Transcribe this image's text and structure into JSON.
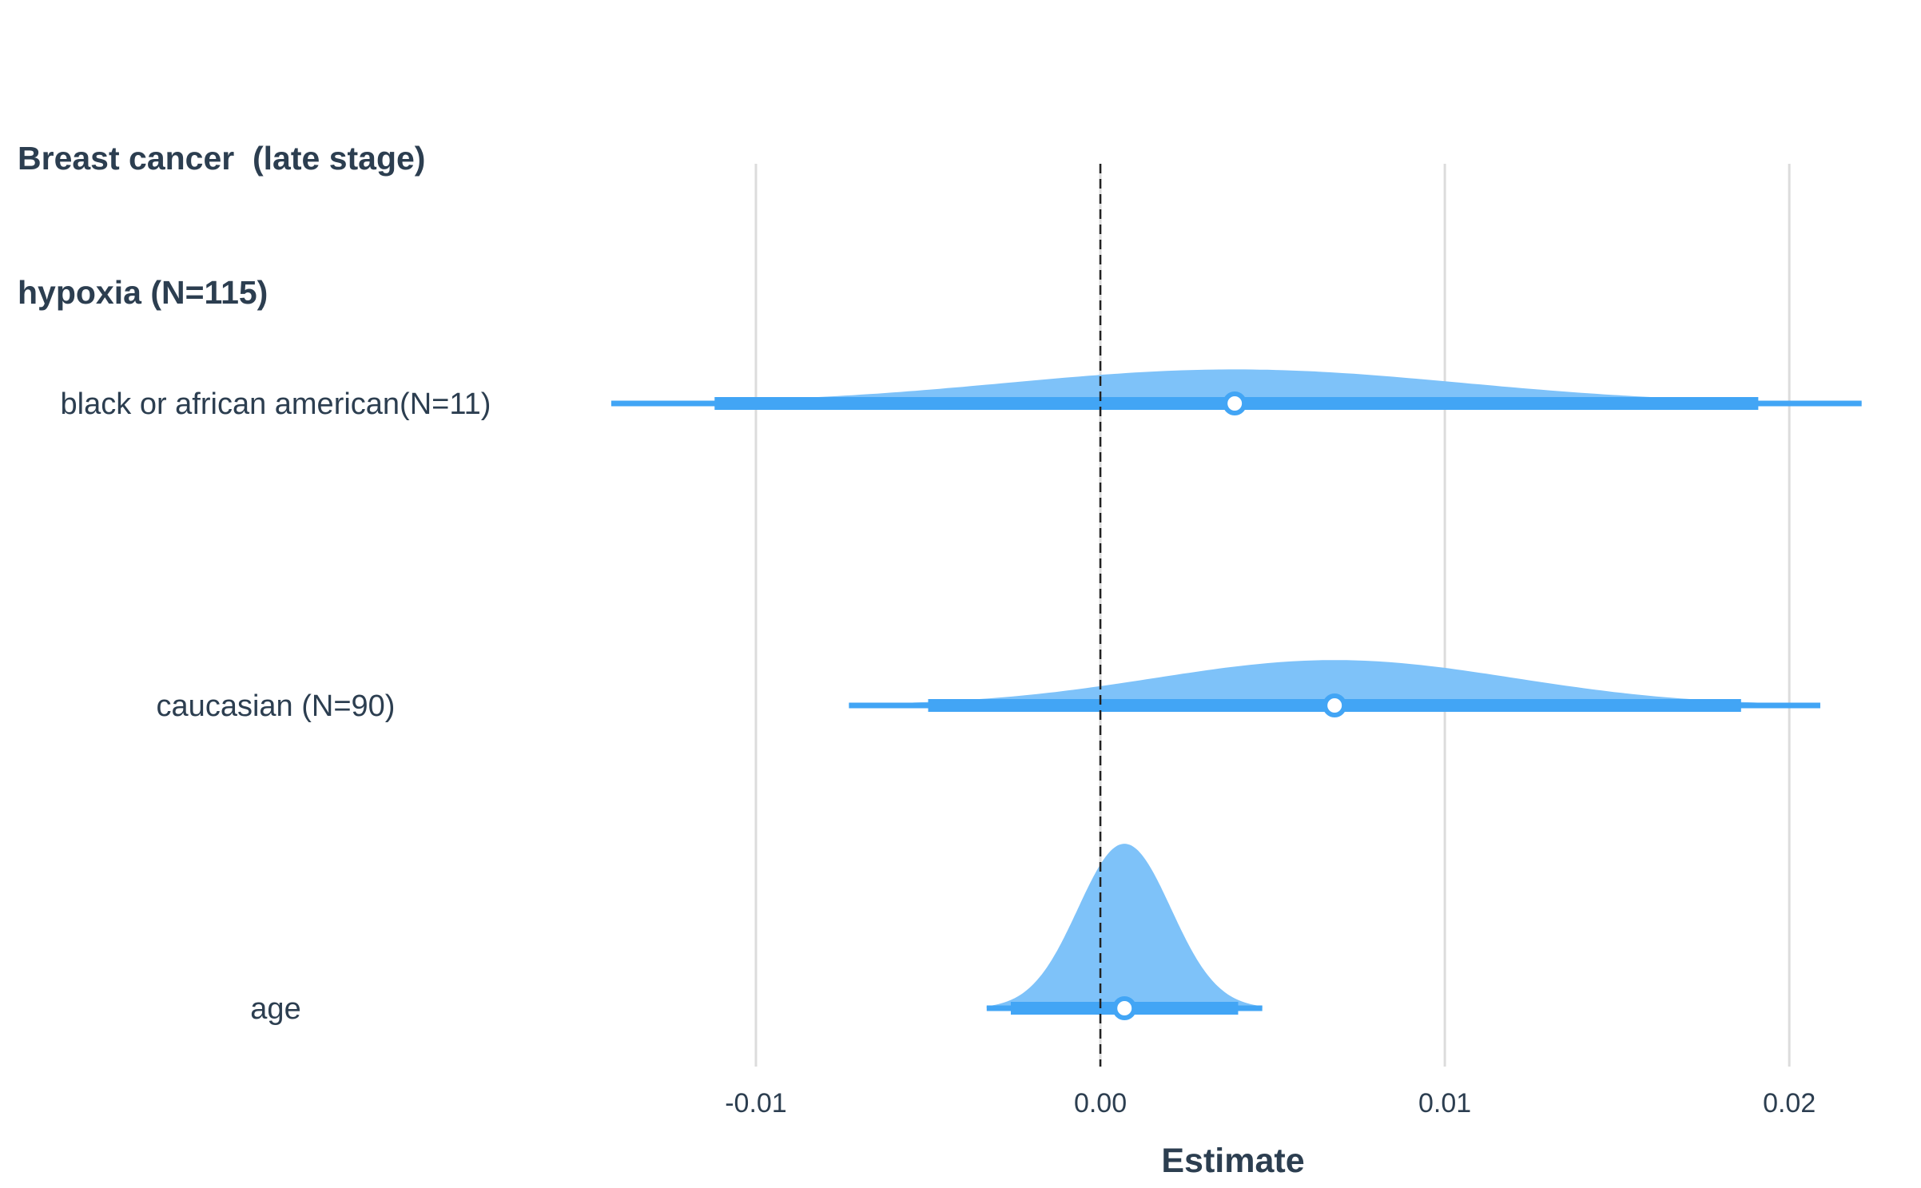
{
  "chart_data": {
    "type": "forest-density",
    "title_lines": [
      "Breast cancer  (late stage)",
      "hypoxia (N=115)"
    ],
    "xlabel": "Estimate",
    "ylabel": "",
    "xlim": [
      -0.0145,
      0.0222
    ],
    "xticks": [
      -0.01,
      0.0,
      0.01,
      0.02
    ],
    "xtick_labels": [
      "-0.01",
      "0.00",
      "0.01",
      "0.02"
    ],
    "reference_line": 0.0,
    "grid": "vertical",
    "colors": {
      "fill": "#7ec2f9",
      "interval": "#42a5f5",
      "point_fill": "#ffffff",
      "point_stroke": "#42a5f5",
      "grid": "#dcdcdc",
      "reference": "#222222"
    },
    "rows": [
      {
        "label": "black or african american(N=11)",
        "estimate": 0.0039,
        "ci_inner": [
          -0.0112,
          0.0191
        ],
        "ci_outer": [
          -0.0142,
          0.0221
        ],
        "sd": 0.0066,
        "peak_height": 0.12
      },
      {
        "label": "caucasian (N=90)",
        "estimate": 0.0068,
        "ci_inner": [
          -0.005,
          0.0186
        ],
        "ci_outer": [
          -0.0073,
          0.0209
        ],
        "sd": 0.0052,
        "peak_height": 0.16
      },
      {
        "label": "age",
        "estimate": 0.0007,
        "ci_inner": [
          -0.0026,
          0.004
        ],
        "ci_outer": [
          -0.0033,
          0.0047
        ],
        "sd": 0.00135,
        "peak_height": 0.58
      }
    ]
  }
}
